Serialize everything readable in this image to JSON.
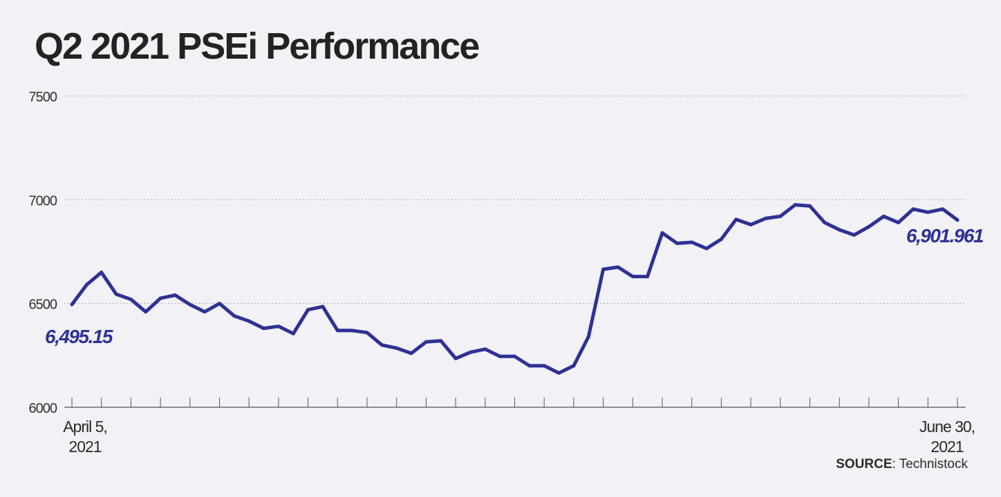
{
  "chart_data": {
    "type": "line",
    "title": "Q2 2021 PSEi Performance",
    "source_label": "SOURCE",
    "source_value": "Technistock",
    "ylim": [
      6000,
      7500
    ],
    "yticks": [
      6000,
      6500,
      7000,
      7500
    ],
    "grid": true,
    "x_start_label": [
      "April 5,",
      "2021"
    ],
    "x_end_label": [
      "June 30,",
      "2021"
    ],
    "start_annotation": "6,495.15",
    "end_annotation": "6,901.961",
    "line_color": "#2e3193",
    "series": [
      {
        "values": [
          6495.15,
          6590,
          6650,
          6545,
          6520,
          6460,
          6525,
          6540,
          6495,
          6460,
          6500,
          6440,
          6415,
          6380,
          6390,
          6355,
          6470,
          6485,
          6370,
          6370,
          6360,
          6300,
          6285,
          6260,
          6315,
          6320,
          6235,
          6265,
          6280,
          6245,
          6245,
          6200,
          6200,
          6165,
          6200,
          6340,
          6665,
          6675,
          6630,
          6630,
          6840,
          6790,
          6795,
          6765,
          6810,
          6905,
          6880,
          6910,
          6920,
          6975,
          6970,
          6890,
          6855,
          6830,
          6870,
          6920,
          6890,
          6955,
          6940,
          6955,
          6901.961
        ]
      }
    ]
  }
}
